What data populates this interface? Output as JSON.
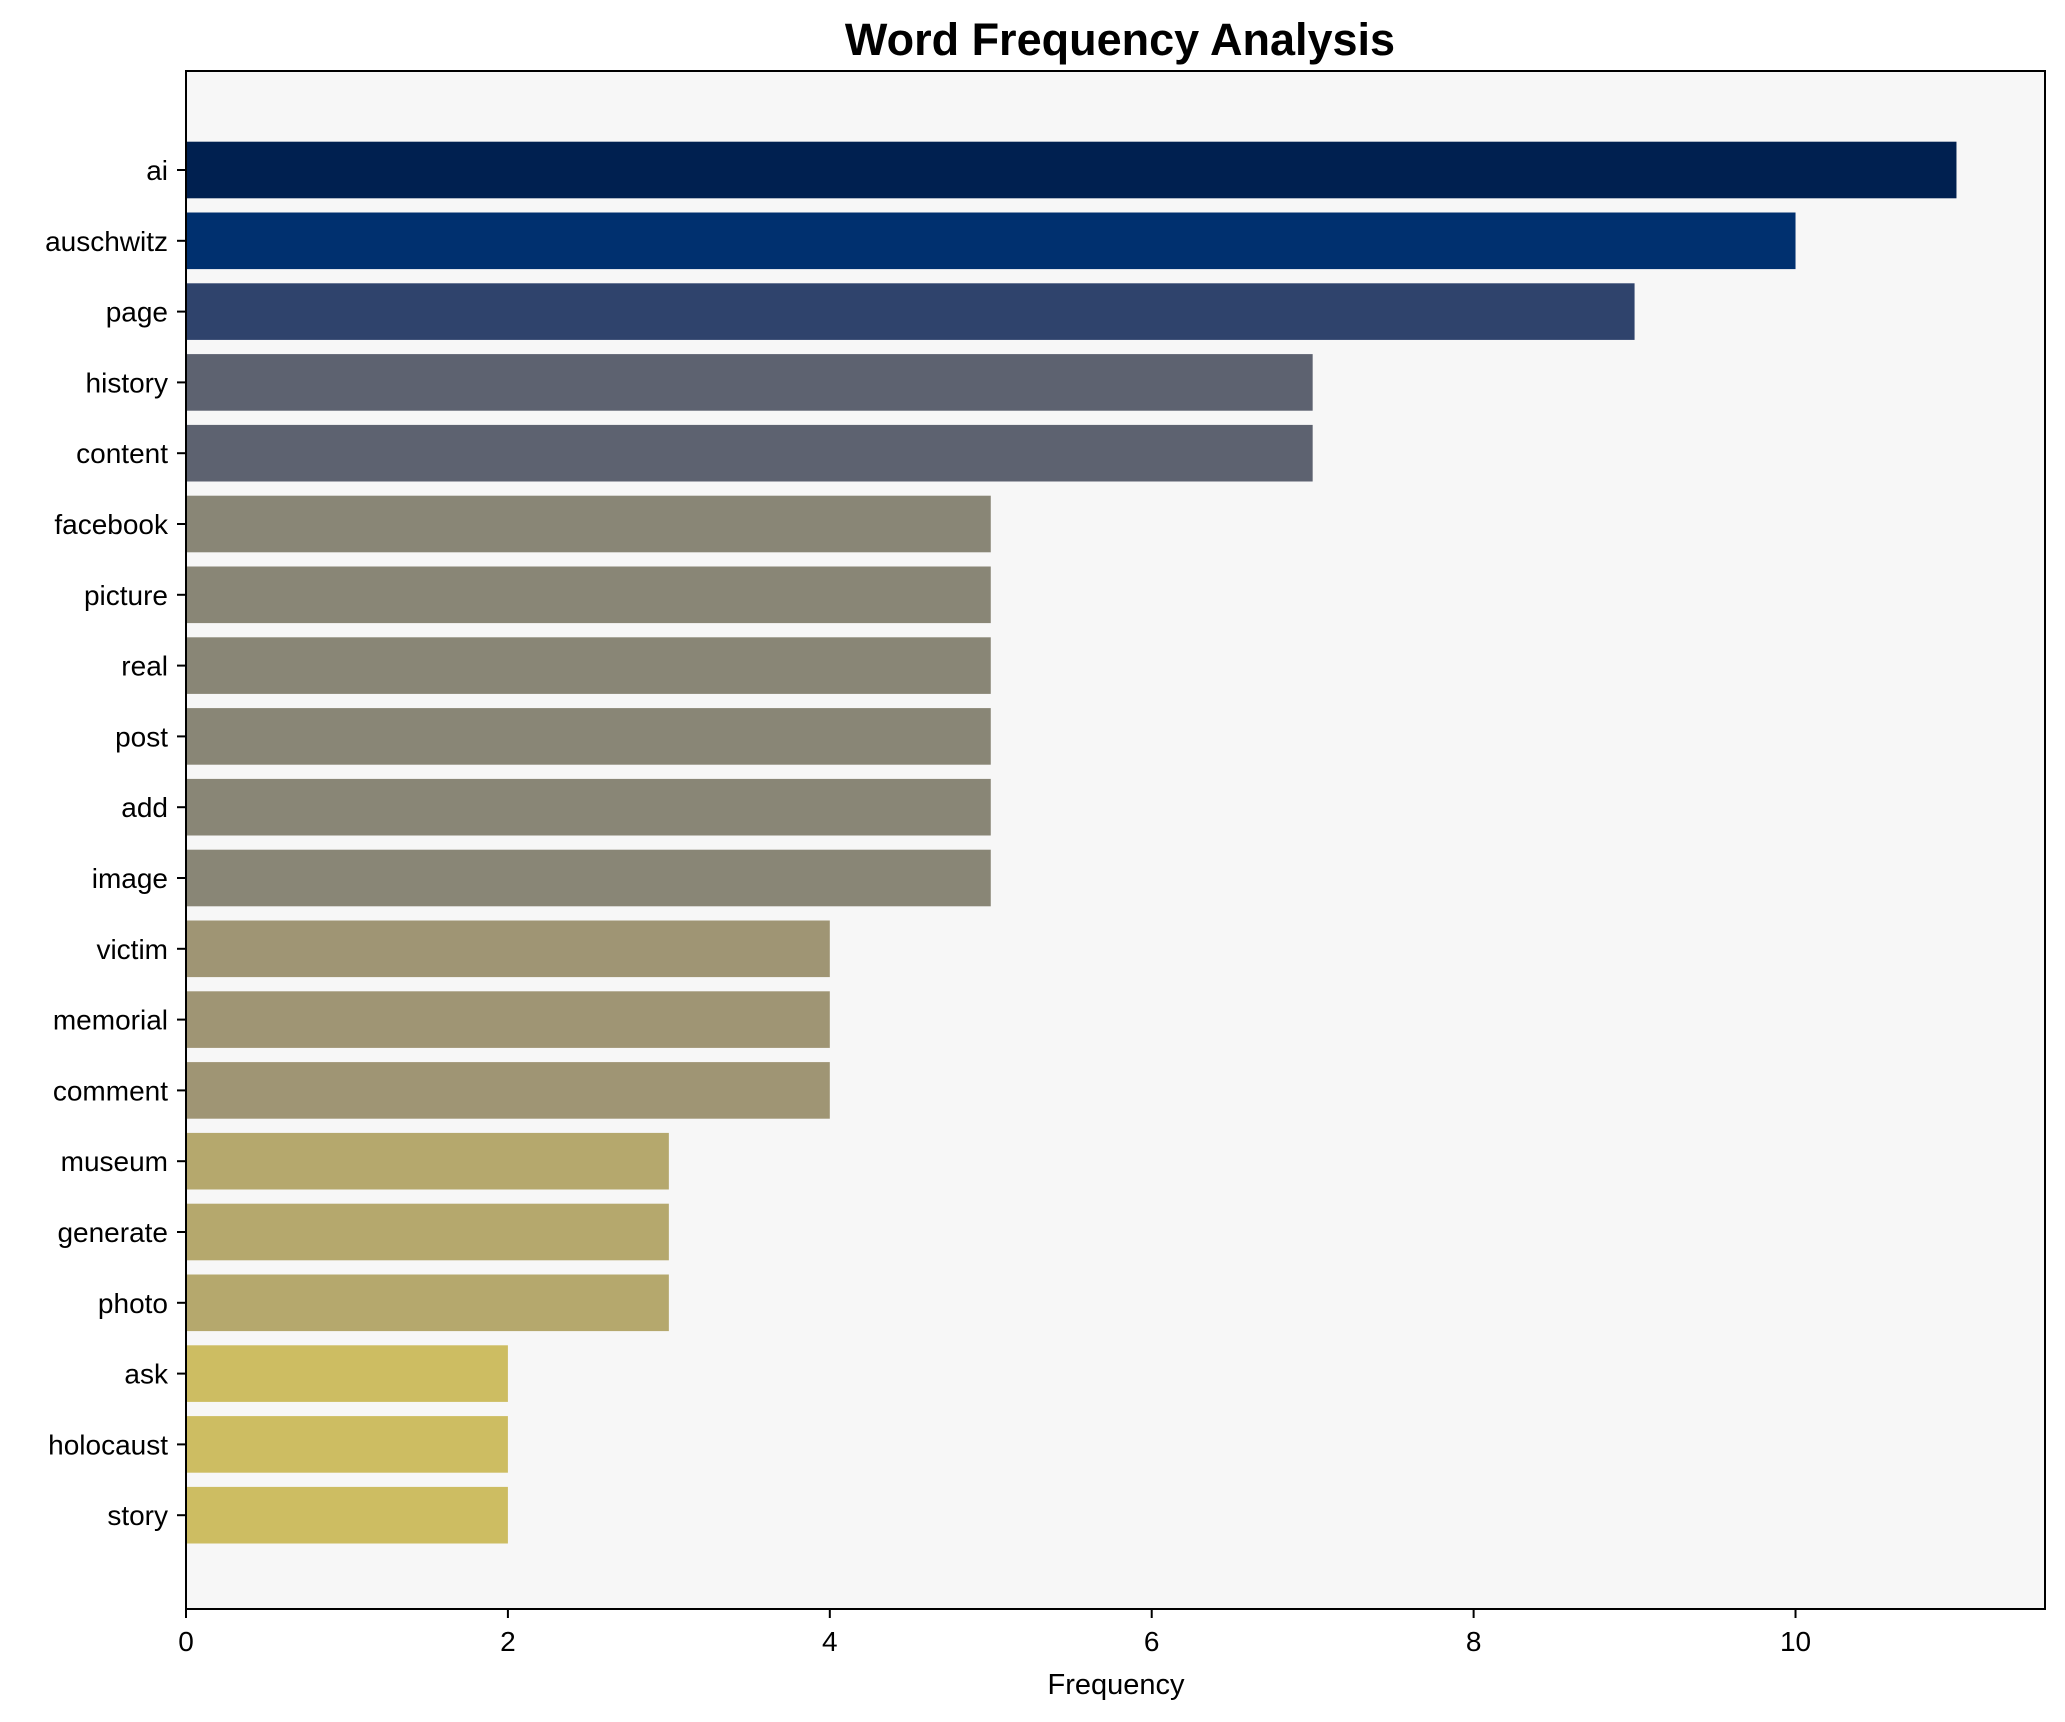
{
  "chart_data": {
    "type": "bar",
    "orientation": "horizontal",
    "title": "Word Frequency Analysis",
    "xlabel": "Frequency",
    "ylabel": "",
    "xlim": [
      0,
      11.55
    ],
    "xticks": [
      0,
      2,
      4,
      6,
      8,
      10
    ],
    "grid": false,
    "categories": [
      "ai",
      "auschwitz",
      "page",
      "history",
      "content",
      "facebook",
      "picture",
      "real",
      "post",
      "add",
      "image",
      "victim",
      "memorial",
      "comment",
      "museum",
      "generate",
      "photo",
      "ask",
      "holocaust",
      "story"
    ],
    "values": [
      11,
      10,
      9,
      7,
      7,
      5,
      5,
      5,
      5,
      5,
      5,
      4,
      4,
      4,
      3,
      3,
      3,
      2,
      2,
      2
    ],
    "colors": [
      "#002050",
      "#00306f",
      "#2f436c",
      "#5d6270",
      "#5d6270",
      "#898676",
      "#898676",
      "#898676",
      "#898676",
      "#898676",
      "#898676",
      "#9f9574",
      "#9f9574",
      "#9f9574",
      "#b5a86d",
      "#b5a86d",
      "#b5a86d",
      "#cdbd62",
      "#cdbd62",
      "#cdbd62"
    ],
    "plot_background": "#f7f7f7"
  }
}
